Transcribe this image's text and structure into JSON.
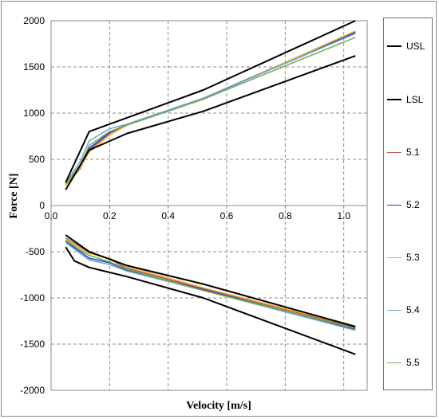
{
  "chart_data": {
    "type": "line",
    "title": "",
    "xlabel": "Velocity [m/s]",
    "ylabel": "Force [N]",
    "xlim": [
      0,
      1.08
    ],
    "ylim": [
      -2000,
      2000
    ],
    "x_ticks": [
      0,
      0.2,
      0.4,
      0.6,
      0.8,
      1.0
    ],
    "x_tick_labels": [
      "0.0",
      "0.2",
      "0.4",
      "0.6",
      "0.8",
      "1.0"
    ],
    "y_ticks": [
      -2000,
      -1500,
      -1000,
      -500,
      0,
      500,
      1000,
      1500,
      2000
    ],
    "y_tick_labels": [
      "-2000",
      "-1500",
      "-1000",
      "-500",
      "0",
      "500",
      "1000",
      "1500",
      "2000"
    ],
    "grid": true,
    "legend_position": "right",
    "series": [
      {
        "name": "USL",
        "color": "#000000",
        "upper": {
          "x": [
            0.05,
            0.13,
            0.26,
            0.52,
            1.04
          ],
          "y": [
            250,
            800,
            950,
            1250,
            2000
          ]
        },
        "lower": {
          "x": [
            0.05,
            0.13,
            0.26,
            0.52,
            1.04
          ],
          "y": [
            -320,
            -500,
            -650,
            -850,
            -1310
          ]
        }
      },
      {
        "name": "LSL",
        "color": "#000000",
        "upper": {
          "x": [
            0.05,
            0.13,
            0.26,
            0.52,
            1.04
          ],
          "y": [
            170,
            600,
            780,
            1020,
            1620
          ]
        },
        "lower": {
          "x": [
            0.05,
            0.08,
            0.13,
            0.26,
            0.52,
            1.04
          ],
          "y": [
            -450,
            -600,
            -670,
            -770,
            -1000,
            -1610
          ]
        }
      },
      {
        "name": "5.1",
        "color": "#c0504d",
        "upper": {
          "x": [
            0.05,
            0.1,
            0.13,
            0.2,
            0.26,
            0.52,
            1.04
          ],
          "y": [
            220,
            400,
            600,
            780,
            880,
            1160,
            1880
          ]
        },
        "lower": {
          "x": [
            0.05,
            0.1,
            0.13,
            0.2,
            0.26,
            0.52,
            1.04
          ],
          "y": [
            -350,
            -450,
            -510,
            -580,
            -680,
            -900,
            -1320
          ]
        }
      },
      {
        "name": "5.2",
        "color": "#1f3fcf",
        "upper": {
          "x": [
            0.05,
            0.1,
            0.13,
            0.2,
            0.26,
            0.52,
            1.04
          ],
          "y": [
            230,
            420,
            620,
            790,
            880,
            1160,
            1870
          ]
        },
        "lower": {
          "x": [
            0.05,
            0.1,
            0.13,
            0.2,
            0.26,
            0.52,
            1.04
          ],
          "y": [
            -390,
            -500,
            -570,
            -620,
            -700,
            -910,
            -1340
          ]
        }
      },
      {
        "name": "5.3",
        "color": "#f0b030",
        "upper": {
          "x": [
            0.05,
            0.1,
            0.13,
            0.2,
            0.26,
            0.52,
            1.04
          ],
          "y": [
            215,
            410,
            580,
            760,
            870,
            1150,
            1890
          ]
        },
        "lower": {
          "x": [
            0.05,
            0.1,
            0.13,
            0.2,
            0.26,
            0.52,
            1.04
          ],
          "y": [
            -360,
            -460,
            -520,
            -570,
            -660,
            -890,
            -1310
          ]
        }
      },
      {
        "name": "5.4",
        "color": "#6aa3d5",
        "upper": {
          "x": [
            0.05,
            0.1,
            0.13,
            0.2,
            0.26,
            0.52,
            1.04
          ],
          "y": [
            240,
            480,
            700,
            830,
            880,
            1160,
            1860
          ]
        },
        "lower": {
          "x": [
            0.05,
            0.1,
            0.13,
            0.2,
            0.26,
            0.52,
            1.04
          ],
          "y": [
            -400,
            -520,
            -590,
            -640,
            -710,
            -920,
            -1350
          ]
        }
      },
      {
        "name": "5.5",
        "color": "#70ad47",
        "upper": {
          "x": [
            0.05,
            0.1,
            0.13,
            0.2,
            0.26,
            0.52,
            1.04
          ],
          "y": [
            230,
            440,
            650,
            800,
            870,
            1150,
            1820
          ]
        },
        "lower": {
          "x": [
            0.05,
            0.1,
            0.13,
            0.2,
            0.26,
            0.52,
            1.04
          ],
          "y": [
            -375,
            -480,
            -540,
            -610,
            -690,
            -920,
            -1330
          ]
        }
      }
    ]
  }
}
